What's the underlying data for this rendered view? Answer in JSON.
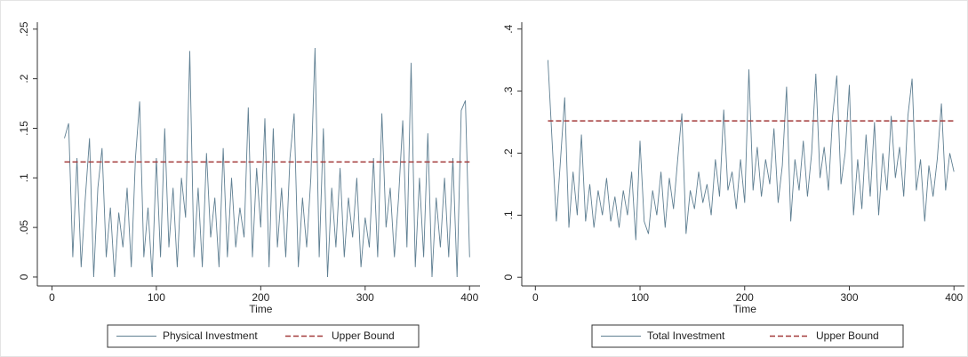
{
  "chart_data": [
    {
      "type": "line",
      "xlabel": "Time",
      "x": [
        12,
        16,
        20,
        24,
        28,
        32,
        36,
        40,
        44,
        48,
        52,
        56,
        60,
        64,
        68,
        72,
        76,
        80,
        84,
        88,
        92,
        96,
        100,
        104,
        108,
        112,
        116,
        120,
        124,
        128,
        132,
        136,
        140,
        144,
        148,
        152,
        156,
        160,
        164,
        168,
        172,
        176,
        180,
        184,
        188,
        192,
        196,
        200,
        204,
        208,
        212,
        216,
        220,
        224,
        228,
        232,
        236,
        240,
        244,
        248,
        252,
        256,
        260,
        264,
        268,
        272,
        276,
        280,
        284,
        288,
        292,
        296,
        300,
        304,
        308,
        312,
        316,
        320,
        324,
        328,
        332,
        336,
        340,
        344,
        348,
        352,
        356,
        360,
        364,
        368,
        372,
        376,
        380,
        384,
        388,
        392,
        396,
        400
      ],
      "series": [
        {
          "name": "Physical Investment",
          "color": "#5f7f92",
          "values": [
            0.14,
            0.155,
            0.02,
            0.12,
            0.01,
            0.08,
            0.14,
            0.0,
            0.09,
            0.13,
            0.02,
            0.07,
            0.0,
            0.065,
            0.03,
            0.09,
            0.01,
            0.12,
            0.177,
            0.02,
            0.07,
            0.0,
            0.12,
            0.02,
            0.15,
            0.03,
            0.09,
            0.01,
            0.1,
            0.06,
            0.228,
            0.02,
            0.09,
            0.01,
            0.125,
            0.04,
            0.08,
            0.01,
            0.13,
            0.02,
            0.1,
            0.03,
            0.07,
            0.04,
            0.171,
            0.02,
            0.11,
            0.05,
            0.16,
            0.01,
            0.15,
            0.03,
            0.09,
            0.02,
            0.12,
            0.165,
            0.01,
            0.08,
            0.03,
            0.1,
            0.231,
            0.02,
            0.15,
            0.0,
            0.09,
            0.03,
            0.11,
            0.02,
            0.08,
            0.04,
            0.1,
            0.01,
            0.06,
            0.03,
            0.12,
            0.02,
            0.165,
            0.05,
            0.09,
            0.02,
            0.08,
            0.158,
            0.03,
            0.216,
            0.01,
            0.1,
            0.02,
            0.145,
            0.0,
            0.08,
            0.03,
            0.1,
            0.02,
            0.12,
            0.0,
            0.168,
            0.178,
            0.02
          ]
        }
      ],
      "upper_bound": {
        "name": "Upper Bound",
        "value": 0.116,
        "color": "#a33a3a"
      },
      "xlim": [
        -14,
        410
      ],
      "xticks": [
        0,
        100,
        200,
        300,
        400
      ],
      "ylim": [
        -0.009,
        0.257
      ],
      "yticks": [
        0,
        {
          "value": 0.05,
          "label": ".05"
        },
        {
          "value": 0.1,
          "label": ".1"
        },
        {
          "value": 0.15,
          "label": ".15"
        },
        {
          "value": 0.2,
          "label": ".2"
        },
        {
          "value": 0.25,
          "label": ".25"
        }
      ]
    },
    {
      "type": "line",
      "xlabel": "Time",
      "x": [
        12,
        16,
        20,
        24,
        28,
        32,
        36,
        40,
        44,
        48,
        52,
        56,
        60,
        64,
        68,
        72,
        76,
        80,
        84,
        88,
        92,
        96,
        100,
        104,
        108,
        112,
        116,
        120,
        124,
        128,
        132,
        136,
        140,
        144,
        148,
        152,
        156,
        160,
        164,
        168,
        172,
        176,
        180,
        184,
        188,
        192,
        196,
        200,
        204,
        208,
        212,
        216,
        220,
        224,
        228,
        232,
        236,
        240,
        244,
        248,
        252,
        256,
        260,
        264,
        268,
        272,
        276,
        280,
        284,
        288,
        292,
        296,
        300,
        304,
        308,
        312,
        316,
        320,
        324,
        328,
        332,
        336,
        340,
        344,
        348,
        352,
        356,
        360,
        364,
        368,
        372,
        376,
        380,
        384,
        388,
        392,
        396,
        400
      ],
      "series": [
        {
          "name": "Total Investment",
          "color": "#5f7f92",
          "values": [
            0.35,
            0.22,
            0.09,
            0.19,
            0.29,
            0.08,
            0.17,
            0.1,
            0.23,
            0.09,
            0.15,
            0.08,
            0.14,
            0.1,
            0.16,
            0.09,
            0.13,
            0.08,
            0.14,
            0.1,
            0.17,
            0.06,
            0.22,
            0.09,
            0.07,
            0.14,
            0.1,
            0.17,
            0.08,
            0.16,
            0.11,
            0.19,
            0.264,
            0.07,
            0.14,
            0.11,
            0.17,
            0.12,
            0.15,
            0.1,
            0.19,
            0.13,
            0.27,
            0.14,
            0.17,
            0.11,
            0.19,
            0.12,
            0.335,
            0.14,
            0.21,
            0.13,
            0.19,
            0.15,
            0.24,
            0.12,
            0.18,
            0.307,
            0.09,
            0.19,
            0.14,
            0.22,
            0.13,
            0.2,
            0.328,
            0.16,
            0.21,
            0.14,
            0.26,
            0.325,
            0.15,
            0.2,
            0.31,
            0.1,
            0.19,
            0.11,
            0.23,
            0.13,
            0.25,
            0.1,
            0.2,
            0.14,
            0.26,
            0.16,
            0.21,
            0.13,
            0.26,
            0.32,
            0.14,
            0.19,
            0.09,
            0.18,
            0.13,
            0.19,
            0.28,
            0.14,
            0.2,
            0.17
          ]
        }
      ],
      "upper_bound": {
        "name": "Upper Bound",
        "value": 0.252,
        "color": "#a33a3a"
      },
      "xlim": [
        -13,
        410
      ],
      "xticks": [
        0,
        100,
        200,
        300,
        400
      ],
      "ylim": [
        -0.014,
        0.411
      ],
      "yticks": [
        0,
        {
          "value": 0.1,
          "label": ".1"
        },
        {
          "value": 0.2,
          "label": ".2"
        },
        {
          "value": 0.3,
          "label": ".3"
        },
        {
          "value": 0.4,
          "label": ".4"
        }
      ]
    }
  ]
}
